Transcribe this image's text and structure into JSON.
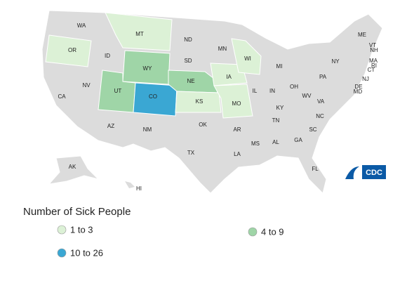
{
  "legend": {
    "title": "Number of Sick People",
    "items": [
      {
        "label": "1 to 3",
        "color": "#dcf1d6"
      },
      {
        "label": "4 to 9",
        "color": "#9fd5a7"
      },
      {
        "label": "10 to 26",
        "color": "#3aa7d3"
      }
    ]
  },
  "logo": "CDC",
  "states": [
    {
      "label": "WA"
    },
    {
      "label": "OR",
      "category": 0
    },
    {
      "label": "CA"
    },
    {
      "label": "NV"
    },
    {
      "label": "ID"
    },
    {
      "label": "MT",
      "category": 0
    },
    {
      "label": "WY",
      "category": 1
    },
    {
      "label": "UT",
      "category": 1
    },
    {
      "label": "CO",
      "category": 2
    },
    {
      "label": "AZ"
    },
    {
      "label": "NM"
    },
    {
      "label": "ND"
    },
    {
      "label": "SD"
    },
    {
      "label": "NE",
      "category": 1
    },
    {
      "label": "KS",
      "category": 0
    },
    {
      "label": "OK"
    },
    {
      "label": "TX"
    },
    {
      "label": "MN"
    },
    {
      "label": "IA",
      "category": 0
    },
    {
      "label": "MO",
      "category": 0
    },
    {
      "label": "AR"
    },
    {
      "label": "LA"
    },
    {
      "label": "WI",
      "category": 0
    },
    {
      "label": "IL"
    },
    {
      "label": "MS"
    },
    {
      "label": "MI"
    },
    {
      "label": "IN"
    },
    {
      "label": "KY"
    },
    {
      "label": "TN"
    },
    {
      "label": "AL"
    },
    {
      "label": "OH"
    },
    {
      "label": "WV"
    },
    {
      "label": "VA"
    },
    {
      "label": "NC"
    },
    {
      "label": "SC"
    },
    {
      "label": "GA"
    },
    {
      "label": "FL"
    },
    {
      "label": "PA"
    },
    {
      "label": "NY"
    },
    {
      "label": "ME"
    },
    {
      "label": "VT"
    },
    {
      "label": "NH"
    },
    {
      "label": "MA"
    },
    {
      "label": "RI"
    },
    {
      "label": "CT"
    },
    {
      "label": "NJ"
    },
    {
      "label": "DE"
    },
    {
      "label": "MD"
    },
    {
      "label": "AK"
    },
    {
      "label": "HI"
    }
  ]
}
